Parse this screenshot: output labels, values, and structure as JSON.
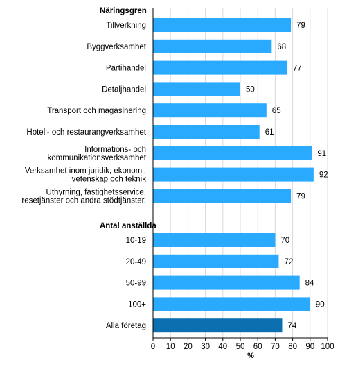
{
  "chart_data": {
    "type": "bar",
    "orientation": "horizontal",
    "xlabel": "%",
    "xlim": [
      0,
      100
    ],
    "xticks": [
      0,
      10,
      20,
      30,
      40,
      50,
      60,
      70,
      80,
      90,
      100
    ],
    "grid": "vertical",
    "colors": {
      "bar": "#29aaff",
      "highlight": "#0b6fb0"
    },
    "groups": [
      {
        "title": "Näringsgren",
        "categories": [
          [
            "Tillverkning"
          ],
          [
            "Byggverksamhet"
          ],
          [
            "Partihandel"
          ],
          [
            "Detaljhandel"
          ],
          [
            "Transport och magasinering"
          ],
          [
            "Hotell- och restaurangverksamhet"
          ],
          [
            "Informations- och",
            "kommunikationsverksamhet"
          ],
          [
            "Verksamhet inom juridik, ekonomi,",
            "vetenskap och teknik"
          ],
          [
            "Uthyrning, fastighetsservice,",
            "resetjänster och andra stödtjänster."
          ]
        ],
        "values": [
          79,
          68,
          77,
          50,
          65,
          61,
          91,
          92,
          79
        ]
      },
      {
        "title": "Antal anställda",
        "categories": [
          [
            "10-19"
          ],
          [
            "20-49"
          ],
          [
            "50-99"
          ],
          [
            "100+"
          ],
          [
            "Alla företag"
          ]
        ],
        "values": [
          70,
          72,
          84,
          90,
          74
        ],
        "highlight_index": 4
      }
    ]
  }
}
